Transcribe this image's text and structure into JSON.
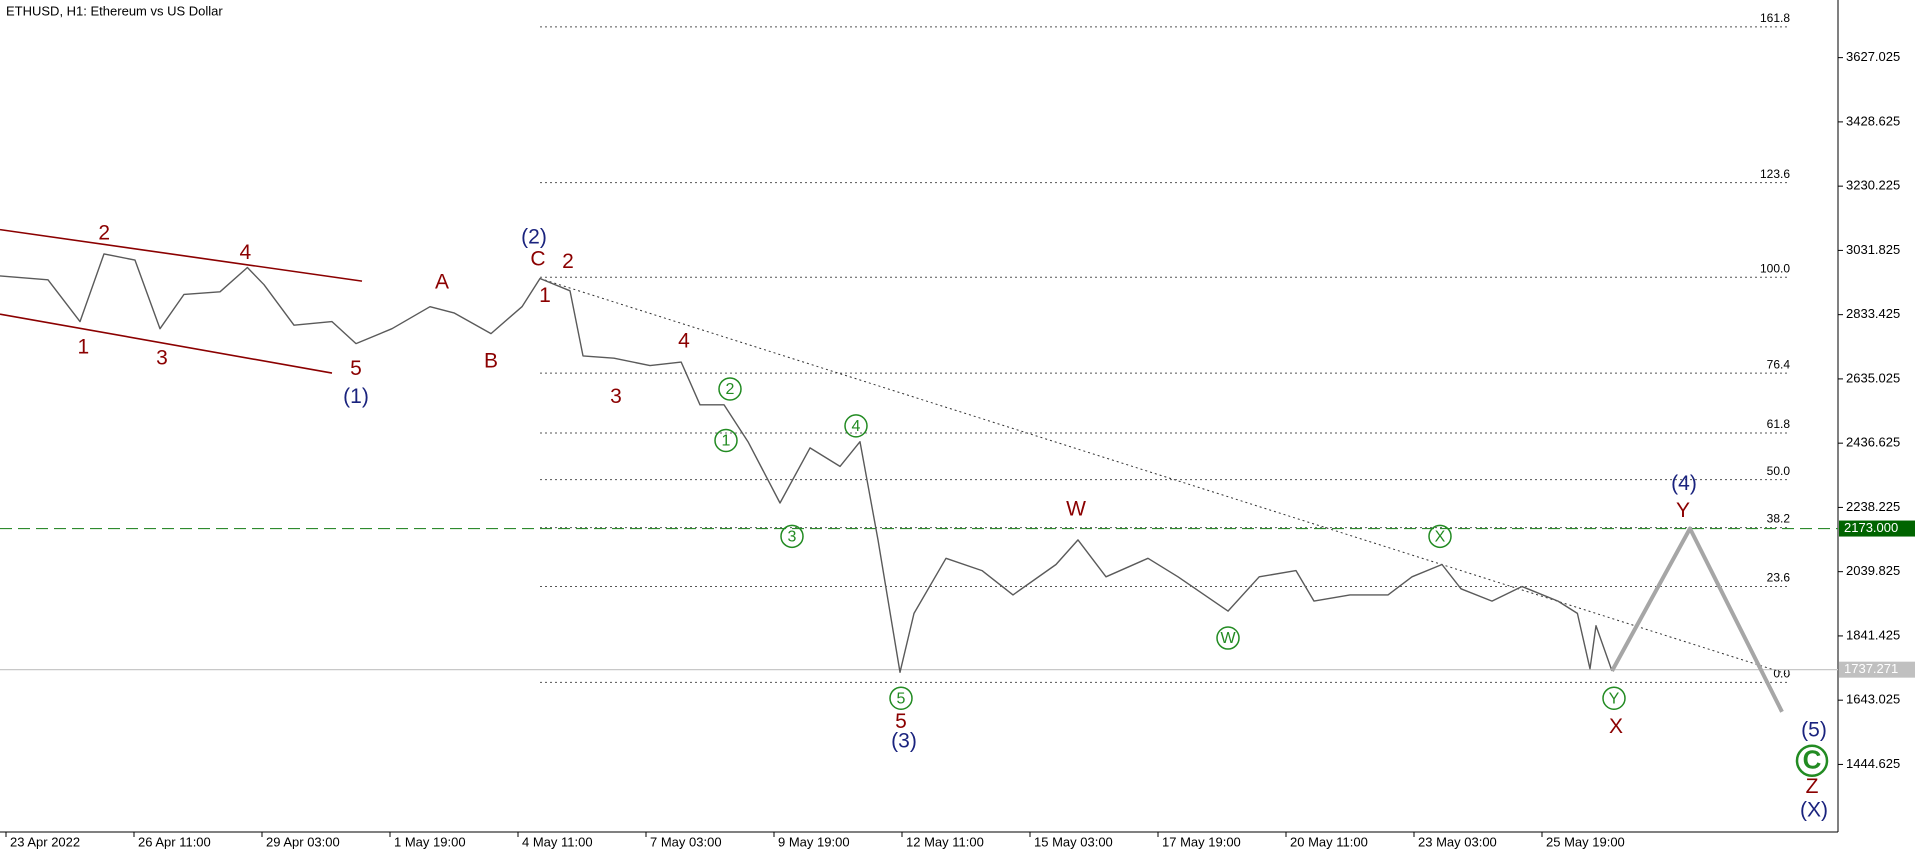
{
  "chart_data": {
    "type": "line",
    "title": "ETHUSD, H1:  Ethereum vs US Dollar",
    "color": "#5a5a5a",
    "x": [
      -3,
      21,
      37,
      49,
      64.5,
      77,
      89,
      107,
      120.7,
      129,
      144,
      163,
      175,
      193,
      212,
      224,
      242.5,
      258,
      267,
      282,
      288.5,
      304,
      322,
      337.6,
      347,
      359,
      371,
      387,
      402,
      417,
      427,
      436,
      447,
      454,
      470,
      488,
      503.5,
      525,
      536,
      550,
      571,
      586,
      611,
      626.6,
      645,
      654,
      672,
      691,
      703,
      718,
      727.5,
      743,
      758,
      776,
      785.7,
      792,
      795,
      803
    ],
    "values": [
      2953,
      2941,
      2812,
      3021,
      3002,
      2790,
      2896,
      2904,
      2979,
      2926,
      2801,
      2812,
      2744,
      2790,
      2858,
      2839,
      2775,
      2858,
      2945,
      2907,
      2706,
      2699,
      2676,
      2687,
      2555,
      2555,
      2441,
      2252,
      2422,
      2365,
      2441,
      2138,
      1729,
      1911,
      2081,
      2043,
      1968,
      2062,
      2138,
      2024,
      2081,
      2024,
      1918,
      2024,
      2043,
      1949,
      1968,
      1968,
      2024,
      2062,
      1987,
      1949,
      1994,
      1949,
      1911,
      1740,
      1873,
      1733
    ],
    "xlim": [
      -3,
      916
    ],
    "ylim": [
      1236,
      3805
    ],
    "xticks": [
      {
        "value": 0,
        "label": "23 Apr 2022"
      },
      {
        "value": 64,
        "label": "26 Apr 11:00"
      },
      {
        "value": 128,
        "label": "29 Apr 03:00"
      },
      {
        "value": 192,
        "label": "1 May 19:00"
      },
      {
        "value": 256,
        "label": "4 May 11:00"
      },
      {
        "value": 320,
        "label": "7 May 03:00"
      },
      {
        "value": 384,
        "label": "9 May 19:00"
      },
      {
        "value": 448,
        "label": "12 May 11:00"
      },
      {
        "value": 512,
        "label": "15 May 03:00"
      },
      {
        "value": 576,
        "label": "17 May 19:00"
      },
      {
        "value": 640,
        "label": "20 May 11:00"
      },
      {
        "value": 704,
        "label": "23 May 03:00"
      },
      {
        "value": 768,
        "label": "25 May 19:00"
      }
    ],
    "yticks": [
      1444.625,
      1643.025,
      1841.425,
      2039.825,
      2238.225,
      2436.625,
      2635.025,
      2833.425,
      3031.825,
      3230.225,
      3428.625,
      3627.025
    ],
    "projection": {
      "x": [
        803,
        842,
        888
      ],
      "values": [
        1733,
        2173,
        1607
      ],
      "color": "#a6a6a6"
    },
    "lines": [
      {
        "x": [
          -3,
          178
        ],
        "values": [
          3096,
          2937
        ],
        "color": "#8b0000",
        "style": "solid"
      },
      {
        "x": [
          -3,
          163
        ],
        "values": [
          2835,
          2653
        ],
        "color": "#8b0000",
        "style": "solid"
      },
      {
        "x": [
          267,
          892
        ],
        "values": [
          2945,
          1721
        ],
        "color": "#333333",
        "style": "dotted"
      }
    ],
    "fib": {
      "x_start": 267,
      "x_end": 892,
      "color": "#555555",
      "levels": [
        {
          "label": "161.8",
          "price": 3722
        },
        {
          "label": "123.6",
          "price": 3241
        },
        {
          "label": "100.0",
          "price": 2949
        },
        {
          "label": "76.4",
          "price": 2653
        },
        {
          "label": "61.8",
          "price": 2468
        },
        {
          "label": "50.0",
          "price": 2324
        },
        {
          "label": "38.2",
          "price": 2176
        },
        {
          "label": "23.6",
          "price": 1994
        },
        {
          "label": "0.0",
          "price": 1698
        }
      ]
    },
    "hlines": [
      {
        "value": 2173,
        "label": "2173.000",
        "color": "#2e8b2e",
        "style": "dashed",
        "tag_color": "#006400"
      },
      {
        "value": 1737.271,
        "color": "#c8c8c8",
        "style": "solid",
        "tag_color": "#c0c0c0"
      }
    ],
    "annotations": [
      {
        "text": "2",
        "x": 49.1,
        "y": 3085,
        "color": "#8b0000"
      },
      {
        "text": "4",
        "x": 119.7,
        "y": 3025,
        "color": "#8b0000"
      },
      {
        "text": "1",
        "x": 38.7,
        "y": 2733,
        "color": "#8b0000"
      },
      {
        "text": "3",
        "x": 78,
        "y": 2699,
        "color": "#8b0000"
      },
      {
        "text": "5",
        "x": 175,
        "y": 2668,
        "color": "#8b0000"
      },
      {
        "text": "(1)",
        "x": 175,
        "y": 2581,
        "color": "#1a237e"
      },
      {
        "text": "A",
        "x": 218,
        "y": 2934,
        "color": "#8b0000"
      },
      {
        "text": "B",
        "x": 242.5,
        "y": 2691,
        "color": "#8b0000"
      },
      {
        "text": "(2)",
        "x": 264,
        "y": 3074,
        "color": "#1a237e"
      },
      {
        "text": "C",
        "x": 266,
        "y": 3006,
        "color": "#8b0000"
      },
      {
        "text": "2",
        "x": 281,
        "y": 2998,
        "color": "#8b0000"
      },
      {
        "text": "1",
        "x": 269.5,
        "y": 2892,
        "color": "#8b0000"
      },
      {
        "text": "4",
        "x": 339,
        "y": 2752,
        "color": "#8b0000"
      },
      {
        "text": "3",
        "x": 305,
        "y": 2581,
        "color": "#8b0000"
      },
      {
        "text": "2",
        "x": 362,
        "y": 2604,
        "color": "#228b22",
        "circled": true
      },
      {
        "text": "1",
        "x": 360,
        "y": 2445,
        "color": "#228b22",
        "circled": true
      },
      {
        "text": "4",
        "x": 425,
        "y": 2490,
        "color": "#228b22",
        "circled": true
      },
      {
        "text": "3",
        "x": 393,
        "y": 2149,
        "color": "#228b22",
        "circled": true
      },
      {
        "text": "5",
        "x": 447.5,
        "y": 1649,
        "color": "#228b22",
        "circled": true
      },
      {
        "text": "5",
        "x": 447.5,
        "y": 1577,
        "color": "#8b0000"
      },
      {
        "text": "(3)",
        "x": 449,
        "y": 1517,
        "color": "#1a237e"
      },
      {
        "text": "W",
        "x": 535,
        "y": 2233,
        "color": "#8b0000"
      },
      {
        "text": "W",
        "x": 611,
        "y": 1835,
        "color": "#228b22",
        "circled": true
      },
      {
        "text": "X",
        "x": 717,
        "y": 2149,
        "color": "#228b22",
        "circled": true
      },
      {
        "text": "Y",
        "x": 804,
        "y": 1649,
        "color": "#228b22",
        "circled": true
      },
      {
        "text": "X",
        "x": 805,
        "y": 1562,
        "color": "#8b0000"
      },
      {
        "text": "(4)",
        "x": 839,
        "y": 2312,
        "color": "#1a237e"
      },
      {
        "text": "Y",
        "x": 838.5,
        "y": 2229,
        "color": "#8b0000"
      },
      {
        "text": "(5)",
        "x": 904,
        "y": 1551,
        "color": "#1a237e"
      },
      {
        "text": "C",
        "x": 903,
        "y": 1456,
        "color": "#228b22",
        "circled": true,
        "big": true
      },
      {
        "text": "Z",
        "x": 903,
        "y": 1376,
        "color": "#8b0000"
      },
      {
        "text": "(X)",
        "x": 904,
        "y": 1304,
        "color": "#1a237e"
      }
    ]
  }
}
